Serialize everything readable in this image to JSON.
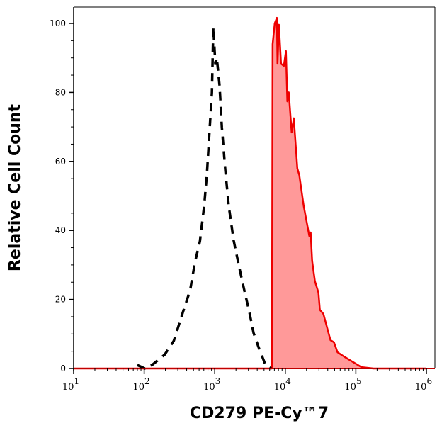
{
  "chart_data": {
    "type": "area",
    "title": "",
    "xlabel": "CD279 PE-Cy™7",
    "ylabel": "Relative Cell Count",
    "xscale": "log",
    "xlim": [
      10,
      1300000
    ],
    "ylim": [
      0,
      105
    ],
    "grid": false,
    "x_ticks": [
      {
        "base": "10",
        "exp": "1",
        "value": 10
      },
      {
        "base": "10",
        "exp": "2",
        "value": 100
      },
      {
        "base": "10",
        "exp": "3",
        "value": 1000
      },
      {
        "base": "10",
        "exp": "4",
        "value": 10000
      },
      {
        "base": "10",
        "exp": "5",
        "value": 100000
      },
      {
        "base": "10",
        "exp": "6",
        "value": 1000000
      }
    ],
    "y_ticks": [
      {
        "label": "0",
        "value": 0
      },
      {
        "label": "20",
        "value": 20
      },
      {
        "label": "40",
        "value": 40
      },
      {
        "label": "60",
        "value": 60
      },
      {
        "label": "80",
        "value": 80
      },
      {
        "label": "100",
        "value": 100
      }
    ],
    "series": [
      {
        "style": "dashed-line",
        "color": "#000000",
        "x": [
          80,
          102,
          129,
          195,
          263,
          355,
          447,
          525,
          617,
          708,
          776,
          851,
          912,
          955,
          1020,
          1070,
          1170,
          1260,
          1410,
          1580,
          1860,
          2240,
          2630,
          3090,
          3550,
          4170,
          5250,
          6310
        ],
        "y": [
          1,
          0,
          1,
          4,
          8,
          16.4,
          22.6,
          30.8,
          36.9,
          47.2,
          56.5,
          70,
          80,
          99,
          88,
          90,
          82,
          70,
          57.5,
          47,
          37,
          29,
          22.6,
          16.4,
          10.3,
          6.2,
          1,
          0
        ]
      },
      {
        "style": "filled-area",
        "color": "#ee0000",
        "fill": "#ff9999",
        "x": [
          10,
          6460,
          6610,
          7080,
          7590,
          7760,
          8130,
          8710,
          9550,
          10200,
          10700,
          11200,
          12300,
          13200,
          14800,
          15800,
          18200,
          21900,
          22900,
          24000,
          26300,
          29500,
          30900,
          34700,
          43700,
          49000,
          55000,
          67600,
          89100,
          120000,
          178000,
          1000000
        ],
        "y": [
          0,
          0,
          94,
          100,
          101.6,
          88.3,
          99.6,
          88.3,
          87.7,
          92,
          77.4,
          80,
          68.4,
          72.5,
          58,
          56,
          47.2,
          38.4,
          39.4,
          31.2,
          25.3,
          22,
          17,
          15.8,
          8.2,
          7.6,
          4.7,
          3.5,
          2,
          0.4,
          0,
          0
        ]
      }
    ]
  }
}
